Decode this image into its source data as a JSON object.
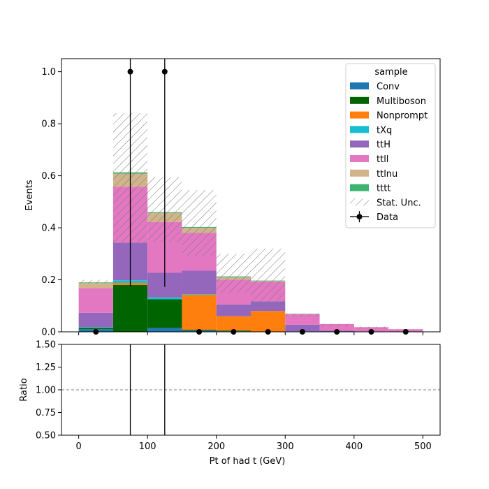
{
  "chart_data": {
    "type": "bar",
    "bins": [
      0,
      50,
      100,
      150,
      200,
      250,
      300,
      350,
      400,
      450,
      500
    ],
    "xlabel": "Pt of had t (GeV)",
    "main": {
      "ylabel": "Events",
      "ylim": [
        0,
        1.05
      ],
      "yticks": [
        "0.0",
        "0.2",
        "0.4",
        "0.6",
        "0.8",
        "1.0"
      ],
      "ytick_values": [
        0,
        0.2,
        0.4,
        0.6,
        0.8,
        1.0
      ],
      "series": [
        {
          "name": "Conv",
          "color": "#1f77b4",
          "values": [
            0.01,
            0,
            0.015,
            0.005,
            0.002,
            0,
            0.002,
            0,
            0,
            0
          ]
        },
        {
          "name": "Multiboson",
          "color": "#006400",
          "values": [
            0.005,
            0.18,
            0.11,
            0.003,
            0.003,
            0,
            0,
            0,
            0,
            0
          ]
        },
        {
          "name": "Nonprompt",
          "color": "#ff7f0e",
          "values": [
            0,
            0.008,
            0,
            0.135,
            0.055,
            0.08,
            0,
            0,
            0,
            0
          ]
        },
        {
          "name": "tXq",
          "color": "#17becf",
          "values": [
            0.003,
            0.01,
            0.007,
            0.002,
            0,
            0,
            0,
            0,
            0,
            0
          ]
        },
        {
          "name": "ttH",
          "color": "#9467bd",
          "values": [
            0.055,
            0.145,
            0.095,
            0.09,
            0.045,
            0.037,
            0.025,
            0.005,
            0.002,
            0.001
          ]
        },
        {
          "name": "ttll",
          "color": "#e377c2",
          "values": [
            0.095,
            0.215,
            0.195,
            0.145,
            0.095,
            0.075,
            0.04,
            0.025,
            0.016,
            0.009
          ]
        },
        {
          "name": "ttlnu",
          "color": "#d2b48c",
          "values": [
            0.02,
            0.05,
            0.035,
            0.02,
            0.01,
            0.003,
            0.002,
            0,
            0,
            0
          ]
        },
        {
          "name": "tttt",
          "color": "#3cb371",
          "values": [
            0.002,
            0.005,
            0.003,
            0.003,
            0.003,
            0.002,
            0.001,
            0,
            0,
            0
          ]
        }
      ],
      "unc_band": {
        "name": "Stat. Unc.",
        "low": [
          0.185,
          0.34,
          0.345,
          0.29,
          0.15,
          0.1,
          0.06,
          0.02,
          0.012,
          0.006
        ],
        "high": [
          0.2,
          0.84,
          0.595,
          0.545,
          0.3,
          0.32,
          0.07,
          0.03,
          0.02,
          0.011
        ]
      },
      "data": {
        "name": "Data",
        "x": [
          25,
          75,
          125,
          175,
          225,
          275,
          325,
          375,
          425,
          475
        ],
        "y": [
          0,
          1,
          1,
          0,
          0,
          0,
          0,
          0,
          0,
          0
        ],
        "err_low": [
          0,
          0.827,
          0.827,
          0,
          0,
          0,
          0,
          0,
          0,
          0
        ],
        "err_high": [
          0,
          2.3,
          2.3,
          0,
          0,
          0,
          0,
          0,
          0,
          0
        ]
      },
      "legend": {
        "title": "sample",
        "position": "upper right"
      }
    },
    "ratio": {
      "ylabel": "Ratio",
      "ylim": [
        0.5,
        1.5
      ],
      "yticks": [
        "0.50",
        "0.75",
        "1.00",
        "1.25",
        "1.50"
      ],
      "ytick_values": [
        0.5,
        0.75,
        1.0,
        1.25,
        1.5
      ],
      "reference_line": 1.0,
      "error_bar_x": [
        75,
        125
      ]
    },
    "xaxis": {
      "xlim": [
        -25,
        525
      ],
      "xticks": [
        "0",
        "100",
        "200",
        "300",
        "400",
        "500"
      ],
      "xtick_values": [
        0,
        100,
        200,
        300,
        400,
        500
      ]
    },
    "colors": {
      "data": "#000000",
      "ref_line": "#808080",
      "hatch": "#808080"
    }
  }
}
